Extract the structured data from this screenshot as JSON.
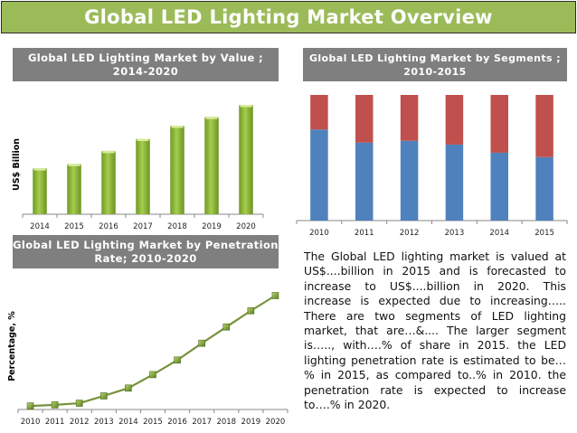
{
  "page": {
    "title": "Global LED Lighting Market Overview",
    "description": "The Global LED lighting market is valued at US$....billion in 2015 and is forecasted to increase to US$....billion in 2020. This increase is expected due to increasing….. There are two segments of LED lighting market, that are…&.... The larger segment is….., with….% of share in 2015. the LED lighting penetration rate is estimated to be…% in 2015, as compared to..% in 2010. the penetration rate is expected to increase to….% in 2020."
  },
  "colors": {
    "banner": "#9bbb59",
    "title_box": "#7f7f7f",
    "bar_green": "#8db43a",
    "segment_blue": "#4f81bd",
    "segment_red": "#c0504d",
    "line_green": "#77933c"
  },
  "chart_data": [
    {
      "type": "bar",
      "title_line1": "Global LED Lighting Market by Value ;",
      "title_line2": "2014-2020",
      "xlabel": "",
      "ylabel": "US$ Billion",
      "categories": [
        "2014",
        "2015",
        "2016",
        "2017",
        "2018",
        "2019",
        "2020"
      ],
      "values": [
        42,
        46,
        58,
        69,
        81,
        89,
        100
      ],
      "value_note": "relative values (no y-axis scale shown), normalized so 2020 = 100",
      "ylim": [
        0,
        100
      ],
      "grid": false,
      "legend": "none"
    },
    {
      "type": "bar",
      "stacked": "percent",
      "title_line1": "Global LED Lighting Market by Segments ;",
      "title_line2": "2010-2015",
      "xlabel": "",
      "ylabel": "",
      "categories": [
        "2010",
        "2011",
        "2012",
        "2013",
        "2014",
        "2015"
      ],
      "series": [
        {
          "name": "Segment A (blue)",
          "values": [
            72.5,
            62,
            63.5,
            60.5,
            54,
            50.5
          ]
        },
        {
          "name": "Segment B (red)",
          "values": [
            27.5,
            38,
            36.5,
            39.5,
            46,
            49.5
          ]
        }
      ],
      "ylim": [
        0,
        100
      ],
      "grid": false,
      "legend": "none"
    },
    {
      "type": "line",
      "title_line1": "Global LED Lighting Market by Penetration",
      "title_line2": "Rate; 2010-2020",
      "xlabel": "",
      "ylabel": "Percentage, %",
      "x": [
        "2010",
        "2011",
        "2012",
        "2013",
        "2014",
        "2015",
        "2016",
        "2017",
        "2018",
        "2019",
        "2020"
      ],
      "values": [
        1.5,
        2.5,
        4,
        10.5,
        17.5,
        29.5,
        42.5,
        57.5,
        72,
        86.5,
        100
      ],
      "value_note": "relative values (no y-axis scale shown), normalized so 2020 = 100",
      "ylim": [
        0,
        100
      ],
      "marker": "square",
      "grid": false,
      "legend": "none"
    }
  ]
}
